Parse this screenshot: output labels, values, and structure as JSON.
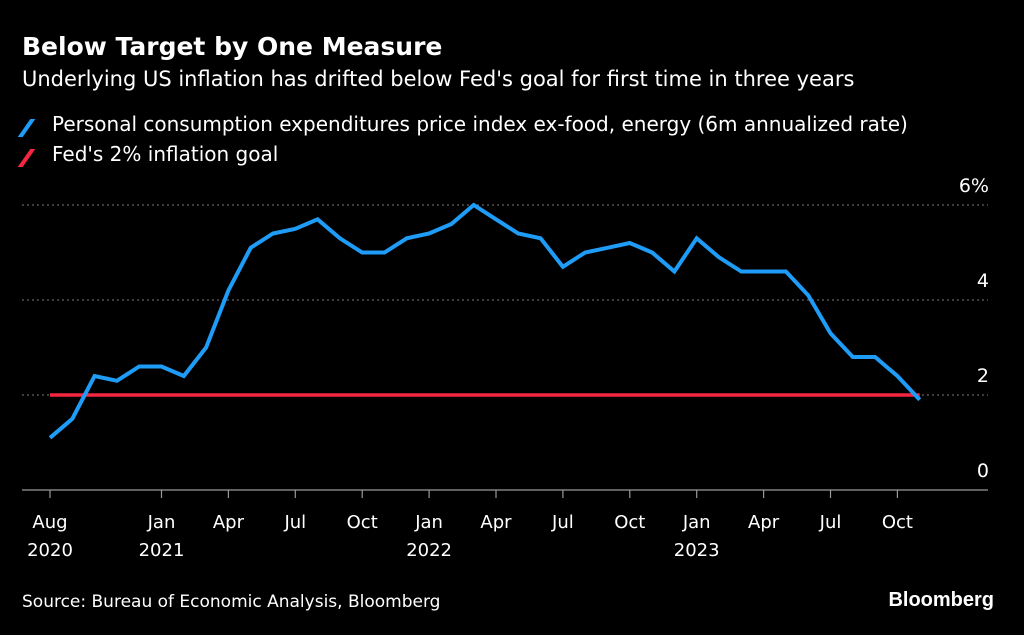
{
  "header": {
    "title": "Below Target by One Measure",
    "subtitle": "Underlying US inflation has drifted below Fed's goal for first time in three years"
  },
  "legend": [
    {
      "label": "Personal consumption expenditures price index ex-food, energy (6m annualized rate)",
      "color": "#1e9cf7"
    },
    {
      "label": "Fed's 2% inflation goal",
      "color": "#f5263f"
    }
  ],
  "footer": {
    "source": "Source: Bureau of Economic Analysis, Bloomberg",
    "brand": "Bloomberg"
  },
  "chart_data": {
    "type": "line",
    "title": "Below Target by One Measure",
    "subtitle": "Underlying US inflation has drifted below Fed's goal for first time in three years",
    "xlabel": "",
    "ylabel": "",
    "ylim": [
      0,
      6
    ],
    "yticks": [
      0,
      2,
      4,
      6
    ],
    "ytick_labels": [
      "0",
      "2",
      "4",
      "6%"
    ],
    "grid": true,
    "legend_position": "top-left",
    "xrange": [
      "2020-08",
      "2023-12"
    ],
    "x_ticks": [
      {
        "month": "2020-08",
        "label": "Aug",
        "year": "2020"
      },
      {
        "month": "2021-01",
        "label": "Jan",
        "year": "2021"
      },
      {
        "month": "2021-04",
        "label": "Apr",
        "year": ""
      },
      {
        "month": "2021-07",
        "label": "Jul",
        "year": ""
      },
      {
        "month": "2021-10",
        "label": "Oct",
        "year": ""
      },
      {
        "month": "2022-01",
        "label": "Jan",
        "year": "2022"
      },
      {
        "month": "2022-04",
        "label": "Apr",
        "year": ""
      },
      {
        "month": "2022-07",
        "label": "Jul",
        "year": ""
      },
      {
        "month": "2022-10",
        "label": "Oct",
        "year": ""
      },
      {
        "month": "2023-01",
        "label": "Jan",
        "year": "2023"
      },
      {
        "month": "2023-04",
        "label": "Apr",
        "year": ""
      },
      {
        "month": "2023-07",
        "label": "Jul",
        "year": ""
      },
      {
        "month": "2023-10",
        "label": "Oct",
        "year": ""
      }
    ],
    "series": [
      {
        "name": "Personal consumption expenditures price index ex-food, energy (6m annualized rate)",
        "color": "#1e9cf7",
        "x": [
          "2020-08",
          "2020-09",
          "2020-10",
          "2020-11",
          "2020-12",
          "2021-01",
          "2021-02",
          "2021-03",
          "2021-04",
          "2021-05",
          "2021-06",
          "2021-07",
          "2021-08",
          "2021-09",
          "2021-10",
          "2021-11",
          "2021-12",
          "2022-01",
          "2022-02",
          "2022-03",
          "2022-04",
          "2022-05",
          "2022-06",
          "2022-07",
          "2022-08",
          "2022-09",
          "2022-10",
          "2022-11",
          "2022-12",
          "2023-01",
          "2023-02",
          "2023-03",
          "2023-04",
          "2023-05",
          "2023-06",
          "2023-07",
          "2023-08",
          "2023-09",
          "2023-10",
          "2023-11"
        ],
        "values": [
          1.1,
          1.5,
          2.4,
          2.3,
          2.6,
          2.6,
          2.4,
          3.0,
          4.2,
          5.1,
          5.4,
          5.5,
          5.7,
          5.3,
          5.0,
          5.0,
          5.3,
          5.4,
          5.6,
          6.0,
          5.7,
          5.4,
          5.3,
          4.7,
          5.0,
          5.1,
          5.2,
          5.0,
          4.6,
          5.3,
          4.9,
          4.6,
          4.6,
          4.6,
          4.1,
          3.3,
          2.8,
          2.8,
          2.4,
          1.9
        ]
      },
      {
        "name": "Fed's 2% inflation goal",
        "color": "#f5263f",
        "x": [
          "2020-08",
          "2023-11"
        ],
        "values": [
          2.0,
          2.0
        ]
      }
    ]
  }
}
